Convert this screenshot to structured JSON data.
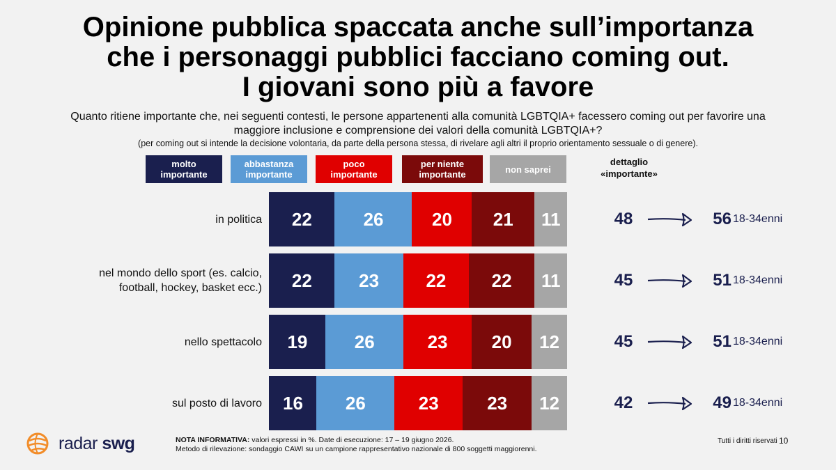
{
  "title_lines": [
    "Opinione pubblica spaccata anche sull’importanza",
    "che i personaggi pubblici facciano coming out.",
    "I giovani sono più a favore"
  ],
  "question_lines": [
    "Quanto ritiene importante che, nei seguenti contesti, le persone appartenenti alla comunità LGBTQIA+ facessero coming out per favorire una",
    "maggiore inclusione e comprensione dei valori della comunità LGBTQIA+?"
  ],
  "note": "(per coming out si intende la decisione volontaria, da parte della persona stessa, di rivelare agli altri il proprio orientamento sessuale o di genere).",
  "detail_header": [
    "dettaglio",
    "«importante»"
  ],
  "colors": {
    "molto": "#1a1f4e",
    "abbastanza": "#5b9bd5",
    "poco": "#e00000",
    "per_niente": "#7b0a0a",
    "non_saprei": "#a6a6a6",
    "accent": "#1a1f4e",
    "logo_orange": "#f28c28"
  },
  "chart_data": {
    "type": "bar",
    "orientation": "horizontal-stacked-100",
    "categories": [
      [
        "in politica"
      ],
      [
        "nel mondo dello sport (es. calcio,",
        "football, hockey, basket ecc.)"
      ],
      [
        "nello spettacolo"
      ],
      [
        "sul posto di lavoro"
      ]
    ],
    "series": [
      {
        "name": [
          "molto",
          "importante"
        ],
        "values": [
          22,
          22,
          19,
          16
        ]
      },
      {
        "name": [
          "abbastanza",
          "importante"
        ],
        "values": [
          26,
          23,
          26,
          26
        ]
      },
      {
        "name": [
          "poco",
          "importante"
        ],
        "values": [
          20,
          22,
          23,
          23
        ]
      },
      {
        "name": [
          "per niente",
          "importante"
        ],
        "values": [
          21,
          22,
          20,
          23
        ]
      },
      {
        "name": [
          "non saprei"
        ],
        "values": [
          11,
          11,
          12,
          12
        ]
      }
    ],
    "importante_total": [
      48,
      45,
      45,
      42
    ],
    "importante_18_34": [
      56,
      51,
      51,
      49
    ],
    "young_label": "18-34enni"
  },
  "logo": {
    "part1": "radar",
    "part2": "swg"
  },
  "footnote": {
    "bold": "NOTA INFORMATIVA:",
    "line1": " valori espressi in %. Date di esecuzione: 17 – 19 giugno 2026.",
    "line2": "Metodo di rilevazione: sondaggio CAWI su un campione rappresentativo nazionale di 800 soggetti maggiorenni."
  },
  "rights": "Tutti i diritti riservati",
  "page_number": "10"
}
